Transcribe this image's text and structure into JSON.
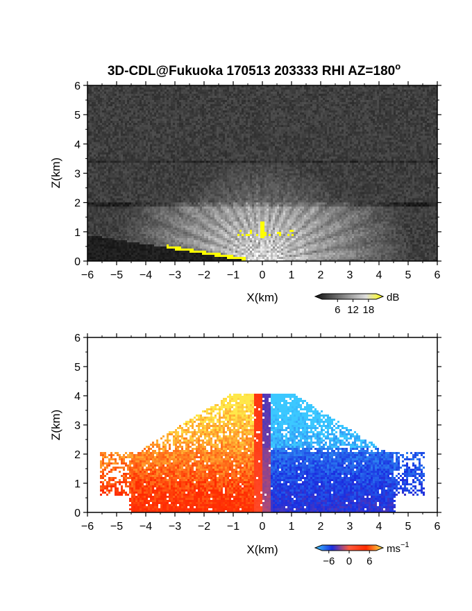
{
  "title": "3D-CDL@Fukuoka 170513 203333 RHI AZ=180",
  "title_degree": "o",
  "chart_data": [
    {
      "type": "heatmap",
      "panel": "reflectivity",
      "xlabel": "X(km)",
      "ylabel": "Z(km)",
      "xlim": [
        -6,
        6
      ],
      "ylim": [
        0,
        6
      ],
      "xticks": [
        "-6",
        "-5",
        "-4",
        "-3",
        "-2",
        "-1",
        "0",
        "1",
        "2",
        "3",
        "4",
        "5",
        "6"
      ],
      "yticks": [
        "0",
        "1",
        "2",
        "3",
        "4",
        "5",
        "6"
      ],
      "colorbar": {
        "unit": "dB",
        "ticks": [
          6,
          12,
          18
        ],
        "tick_labels": [
          "6",
          "12",
          "18"
        ],
        "range": [
          0,
          21
        ],
        "colormap": "greyscale-to-yellow"
      },
      "features": [
        {
          "name": "layer-top",
          "z": 2.0
        },
        {
          "name": "upper-layer",
          "z": 3.4
        },
        {
          "name": "strong-echo",
          "x": [
            -0.9,
            1.1
          ],
          "z": [
            0.8,
            1.35
          ],
          "value": 18
        },
        {
          "name": "ground-clutter",
          "x": [
            -3.3,
            -0.6
          ],
          "z": [
            0.0,
            0.5
          ],
          "value": 18
        }
      ]
    },
    {
      "type": "heatmap",
      "panel": "doppler-velocity",
      "xlabel": "X(km)",
      "ylabel": "Z(km)",
      "xlim": [
        -6,
        6
      ],
      "ylim": [
        0,
        6
      ],
      "xticks": [
        "-6",
        "-5",
        "-4",
        "-3",
        "-2",
        "-1",
        "0",
        "1",
        "2",
        "3",
        "4",
        "5",
        "6"
      ],
      "yticks": [
        "0",
        "1",
        "2",
        "3",
        "4",
        "5",
        "6"
      ],
      "colorbar": {
        "unit": "ms",
        "unit_exp": "-1",
        "ticks": [
          -6,
          0,
          6
        ],
        "tick_labels": [
          "-6",
          "0",
          "6"
        ],
        "range": [
          -8,
          8
        ],
        "colormap": "blue-red-yellow"
      },
      "features": [
        {
          "name": "receding-side",
          "x": [
            -6,
            0
          ],
          "z": [
            0,
            4.1
          ],
          "value": 4
        },
        {
          "name": "approaching-side",
          "x": [
            0,
            6
          ],
          "z": [
            0,
            3.9
          ],
          "value": -4
        },
        {
          "name": "layer-top",
          "z": 2.05
        }
      ]
    }
  ],
  "colors": {
    "frame": "#000000",
    "highlight": "#ffff00",
    "velocity_neg": "#1a2ee0",
    "velocity_pos": "#ff2a00",
    "velocity_zero": "#ff5a3c",
    "velocity_max": "#ffe84a"
  }
}
